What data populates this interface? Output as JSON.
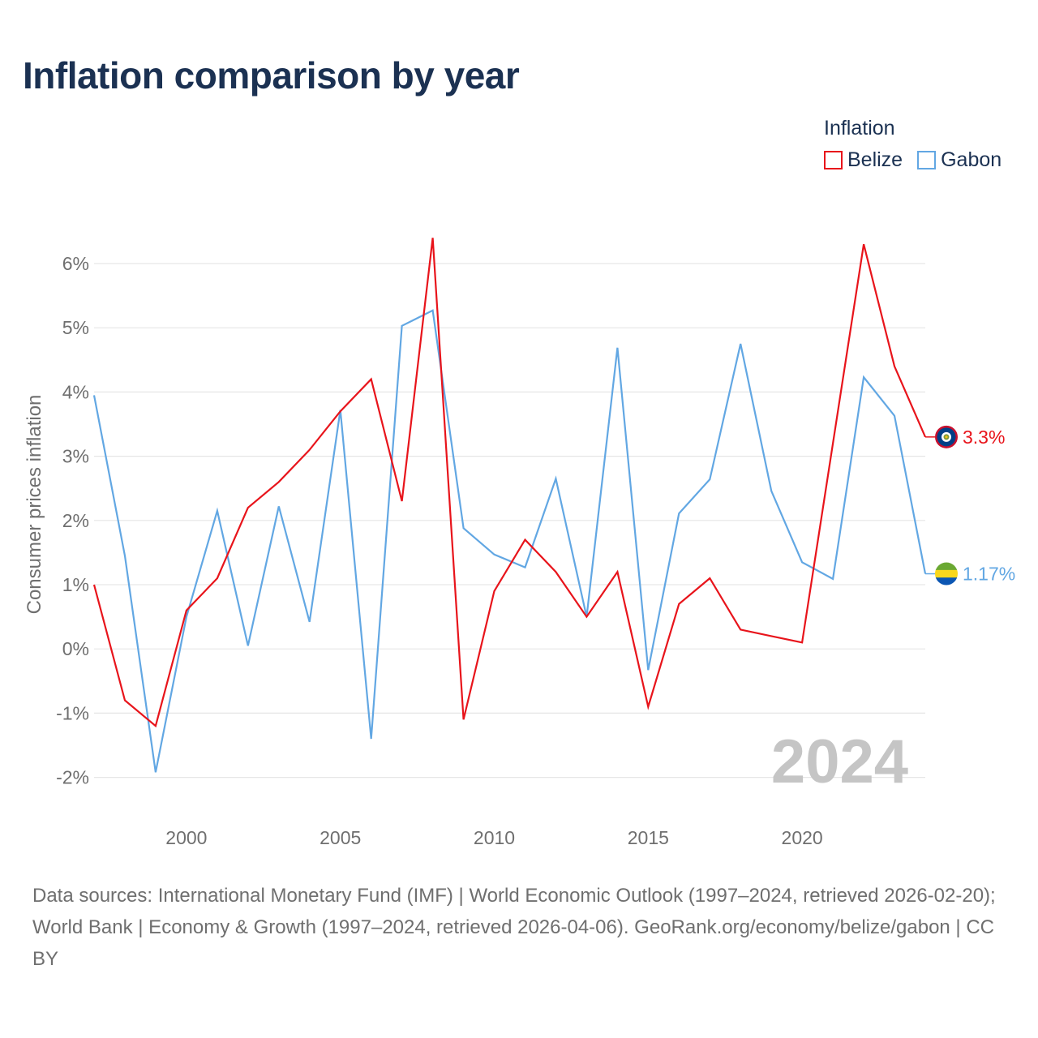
{
  "title": "Inflation comparison by year",
  "legend": {
    "title": "Inflation",
    "items": [
      {
        "label": "Belize",
        "color": "#e8141b"
      },
      {
        "label": "Gabon",
        "color": "#62a7e3"
      }
    ]
  },
  "chart_data": {
    "type": "line",
    "ylabel": "Consumer prices inflation",
    "xlabel": "",
    "xlim": [
      1997,
      2024
    ],
    "ylim": [
      -2.5,
      6.5
    ],
    "x_ticks": [
      2000,
      2005,
      2010,
      2015,
      2020
    ],
    "y_ticks": [
      -2,
      -1,
      0,
      1,
      2,
      3,
      4,
      5,
      6
    ],
    "y_tick_labels": [
      "-2%",
      "-1%",
      "0%",
      "1%",
      "2%",
      "3%",
      "4%",
      "5%",
      "6%"
    ],
    "x": [
      1997,
      1998,
      1999,
      2000,
      2001,
      2002,
      2003,
      2004,
      2005,
      2006,
      2007,
      2008,
      2009,
      2010,
      2011,
      2012,
      2013,
      2014,
      2015,
      2016,
      2017,
      2018,
      2019,
      2020,
      2021,
      2022,
      2023,
      2024
    ],
    "series": [
      {
        "name": "Belize",
        "color": "#e8141b",
        "end_label": "3.3%",
        "values": [
          1.0,
          -0.8,
          -1.2,
          0.6,
          1.1,
          2.2,
          2.6,
          3.1,
          3.7,
          4.2,
          2.3,
          6.4,
          -1.1,
          0.9,
          1.7,
          1.2,
          0.5,
          1.2,
          -0.9,
          0.7,
          1.1,
          0.3,
          0.2,
          0.1,
          3.2,
          6.3,
          4.4,
          3.3
        ]
      },
      {
        "name": "Gabon",
        "color": "#62a7e3",
        "end_label": "1.17%",
        "values": [
          3.95,
          1.45,
          -1.92,
          0.5,
          2.15,
          0.05,
          2.22,
          0.42,
          3.72,
          -1.4,
          5.03,
          5.27,
          1.88,
          1.47,
          1.27,
          2.65,
          0.5,
          4.69,
          -0.33,
          2.11,
          2.64,
          4.75,
          2.46,
          1.35,
          1.09,
          4.23,
          3.63,
          1.17
        ]
      }
    ],
    "watermark_year": "2024",
    "grid": true
  },
  "source_text": "Data sources: International Monetary Fund (IMF) | World Economic Outlook (1997–2024, retrieved 2026-02-20); World Bank | Economy & Growth (1997–2024, retrieved 2026-04-06). GeoRank.org/economy/belize/gabon | CC BY"
}
